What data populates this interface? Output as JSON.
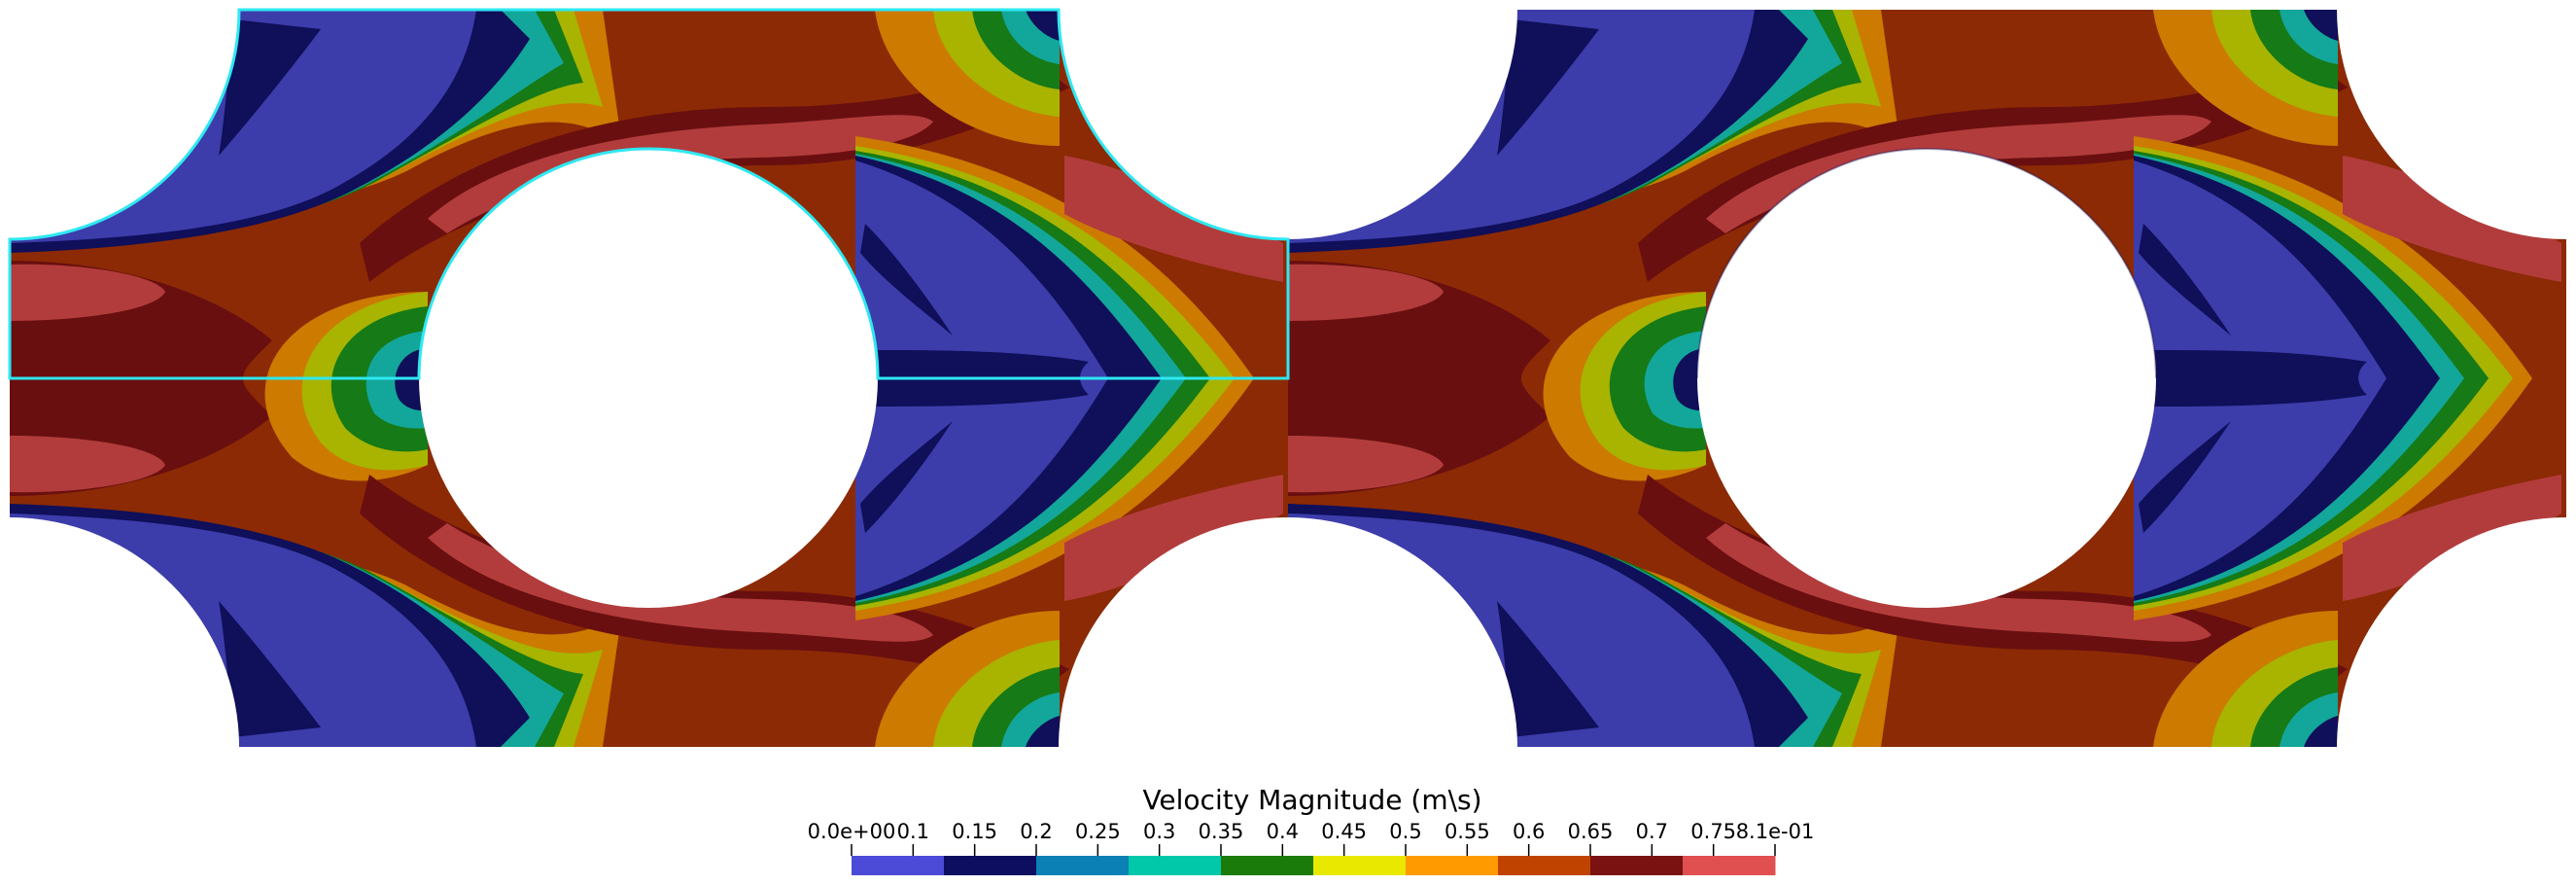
{
  "colorbar": {
    "title": "Velocity Magnitude (m\\s)",
    "tick_labels": [
      "0.0e+00",
      "0.1",
      "0.15",
      "0.2",
      "0.25",
      "0.3",
      "0.35",
      "0.4",
      "0.45",
      "0.5",
      "0.55",
      "0.6",
      "0.65",
      "0.7",
      "0.75",
      "8.1e-01"
    ],
    "band_colors": [
      "#4b4bd8",
      "#0e0e60",
      "#0a80b4",
      "#00c8a8",
      "#1a7a0a",
      "#e8e800",
      "#ff9a00",
      "#c04400",
      "#7a1212",
      "#e05050"
    ]
  },
  "palette": {
    "low_blue": "#3c3caa",
    "deep_navy": "#0f0f5a",
    "teal": "#13a69a",
    "green": "#167a16",
    "olive_yellow": "#a8b400",
    "orange": "#cc7a00",
    "rust": "#8b2a05",
    "maroon": "#6a0f0f",
    "salmon": "#b23c3c",
    "outline_cyan": "#2ee8f2"
  }
}
